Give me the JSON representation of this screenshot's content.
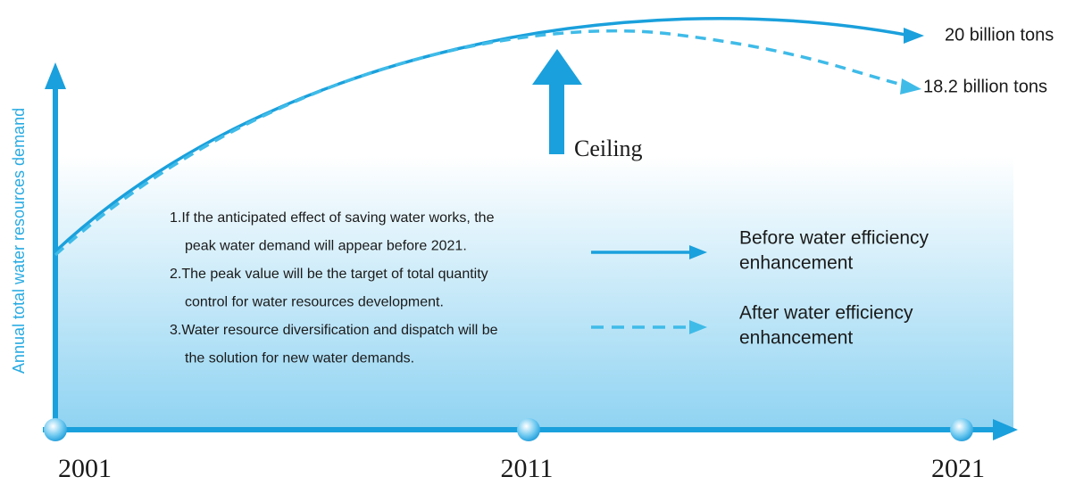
{
  "y_axis_label": "Annual total water resources demand",
  "x_labels": [
    "2001",
    "2011",
    "2021"
  ],
  "end_labels": {
    "before": "20 billion tons",
    "after": "18.2 billion tons"
  },
  "ceiling": "Ceiling",
  "notes": [
    [
      "1.If the anticipated effect of saving water works, the",
      "peak water demand will appear before 2021."
    ],
    [
      "2.The peak value will be the target of total quantity",
      "control for water resources development."
    ],
    [
      "3.Water resource diversification and dispatch will be",
      "the solution for new water demands."
    ]
  ],
  "legend": [
    {
      "style": "solid",
      "lines": [
        "Before water efficiency",
        "enhancement"
      ]
    },
    {
      "style": "dashed",
      "lines": [
        "After water efficiency",
        "enhancement"
      ]
    }
  ]
}
